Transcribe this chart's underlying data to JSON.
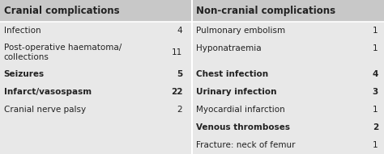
{
  "title_left": "Cranial complications",
  "title_right": "Non-cranial complications",
  "cranial_rows": [
    [
      "Infection",
      "4"
    ],
    [
      "Post-operative haematoma/\ncollections",
      "11"
    ],
    [
      "Seizures",
      "5"
    ],
    [
      "Infarct/vasospasm",
      "22"
    ],
    [
      "Cranial nerve palsy",
      "2"
    ]
  ],
  "noncranial_rows": [
    [
      "Pulmonary embolism",
      "1"
    ],
    [
      "Hyponatraemia",
      "1"
    ],
    [
      "",
      ""
    ],
    [
      "Chest infection",
      "4"
    ],
    [
      "Urinary infection",
      "3"
    ],
    [
      "Myocardial infarction",
      "1"
    ],
    [
      "Venous thromboses",
      "2"
    ],
    [
      "Fracture: neck of femur",
      "1"
    ]
  ],
  "bg_color": "#e8e8e8",
  "header_bg": "#d0d0d0",
  "text_color": "#222222",
  "bold_rows": [
    0,
    2,
    3,
    5,
    6
  ],
  "font_size": 7.5,
  "header_font_size": 8.5
}
